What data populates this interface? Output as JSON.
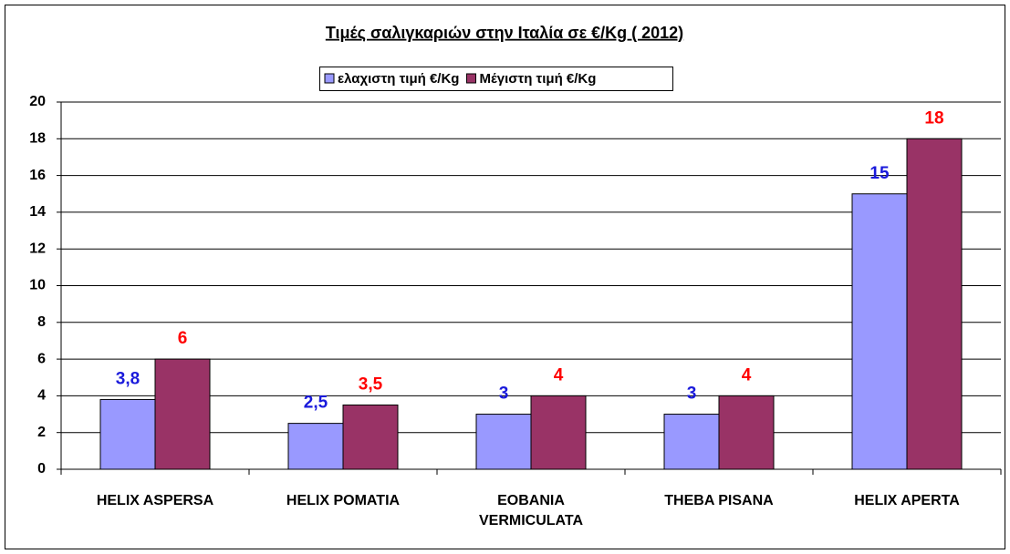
{
  "chart_data": {
    "type": "bar",
    "title": "Τιμές σαλιγκαριών στην Ιταλία σε €/Kg ( 2012)",
    "categories": [
      "HELIX ASPERSA",
      "HELIX POMATIA",
      "EOBANIA VERMICULATA",
      "THEBA PISANA",
      "HELIX APERTA"
    ],
    "series": [
      {
        "name": "ελαχιστη τιμή €/Kg",
        "color": "#9999ff",
        "label_color": "#1a1adb",
        "values": [
          3.8,
          2.5,
          3,
          3,
          15
        ],
        "value_labels": [
          "3,8",
          "2,5",
          "3",
          "3",
          "15"
        ]
      },
      {
        "name": "Μέγιστη τιμή €/Kg",
        "color": "#993366",
        "label_color": "#ff0000",
        "values": [
          6,
          3.5,
          4,
          4,
          18
        ],
        "value_labels": [
          "6",
          "3,5",
          "4",
          "4",
          "18"
        ]
      }
    ],
    "ylim": [
      0,
      20
    ],
    "yticks": [
      0,
      2,
      4,
      6,
      8,
      10,
      12,
      14,
      16,
      18,
      20
    ],
    "grid": true,
    "legend": "top"
  }
}
